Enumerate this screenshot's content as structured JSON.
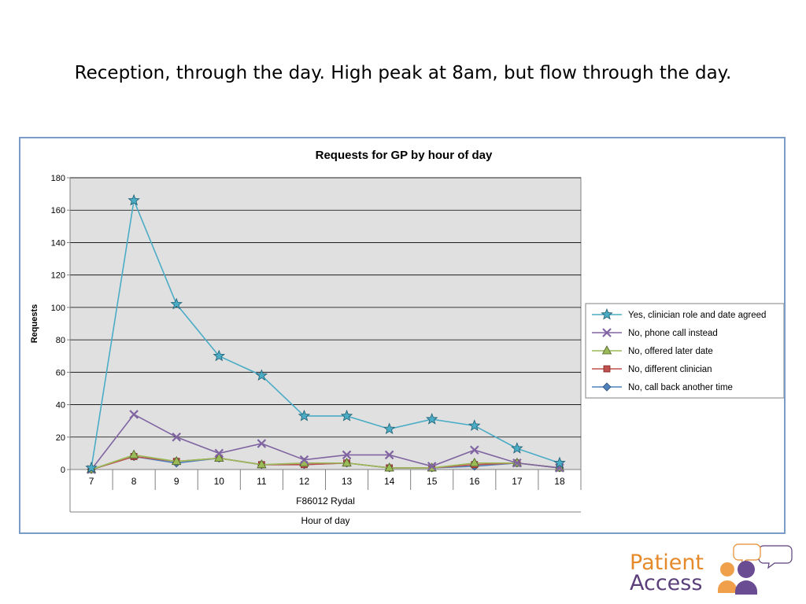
{
  "slide": {
    "title": "Reception, through the day.  High peak at 8am, but flow through the day."
  },
  "logo": {
    "line1": "Patient",
    "line2": "Access",
    "line1_color": "#e58a2b",
    "line2_color": "#5b3f7a"
  },
  "chart_data": {
    "type": "line",
    "title": "Requests for GP by hour of day",
    "ylabel": "Requests",
    "xlabel_group": "F86012 Rydal",
    "xlabel": "Hour of day",
    "categories": [
      "7",
      "8",
      "9",
      "10",
      "11",
      "12",
      "13",
      "14",
      "15",
      "16",
      "17",
      "18"
    ],
    "ylim": [
      0,
      180
    ],
    "yticks": [
      0,
      20,
      40,
      60,
      80,
      100,
      120,
      140,
      160,
      180
    ],
    "grid": true,
    "plot_background": "#e0e0e0",
    "legend_position": "right",
    "series": [
      {
        "name": "Yes, clinician role and date agreed",
        "color": "#4bacc6",
        "marker": "star",
        "values": [
          1,
          166,
          102,
          70,
          58,
          33,
          33,
          25,
          31,
          27,
          13,
          4
        ]
      },
      {
        "name": "No, phone call instead",
        "color": "#8064a2",
        "marker": "x",
        "values": [
          0,
          34,
          20,
          10,
          16,
          6,
          9,
          9,
          2,
          12,
          4,
          1
        ]
      },
      {
        "name": "No, offered later date",
        "color": "#9bbb59",
        "marker": "triangle",
        "values": [
          0,
          9,
          5,
          7,
          3,
          4,
          4,
          1,
          1,
          4,
          4,
          1
        ]
      },
      {
        "name": "No, different clinician",
        "color": "#c0504d",
        "marker": "square",
        "values": [
          0,
          8,
          5,
          7,
          3,
          3,
          4,
          1,
          1,
          3,
          4,
          1
        ]
      },
      {
        "name": "No, call back another time",
        "color": "#4f81bd",
        "marker": "diamond",
        "values": [
          0,
          8,
          4,
          7,
          3,
          3,
          4,
          1,
          1,
          2,
          4,
          1
        ]
      }
    ]
  }
}
